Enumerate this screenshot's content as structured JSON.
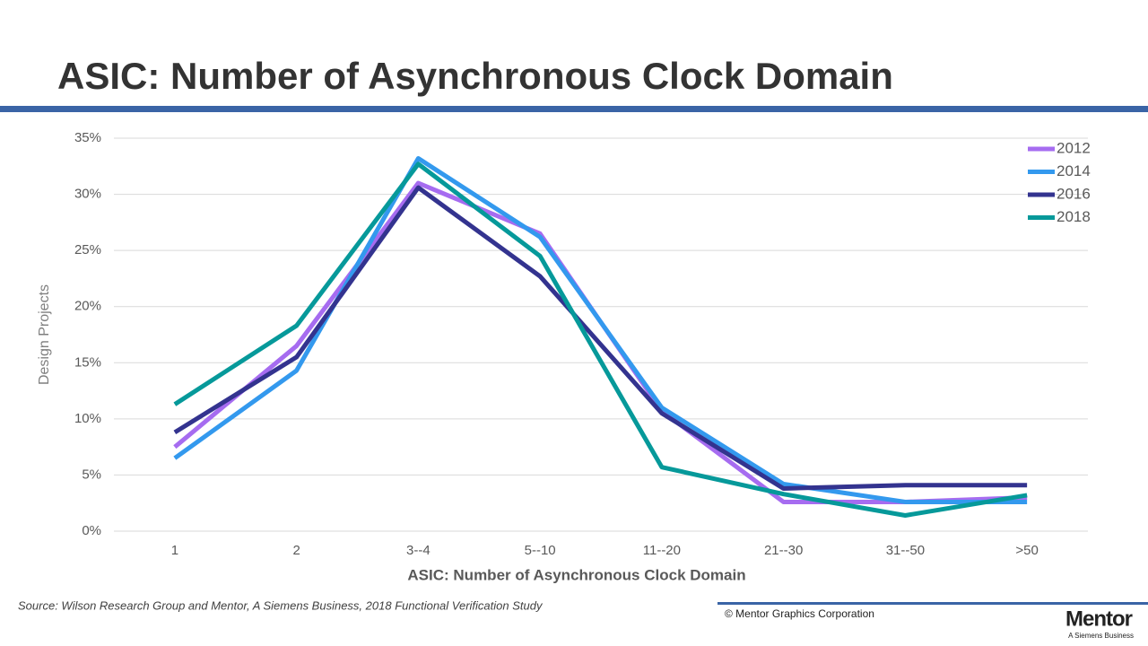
{
  "title": "ASIC: Number of Asynchronous Clock Domain",
  "chart_data": {
    "type": "line",
    "categories": [
      "1",
      "2",
      "3--4",
      "5--10",
      "11--20",
      "21--30",
      "31--50",
      ">50"
    ],
    "series": [
      {
        "name": "2012",
        "color": "#a66cf0",
        "values": [
          7.5,
          16.5,
          31.0,
          26.5,
          10.7,
          2.6,
          2.6,
          3.0
        ]
      },
      {
        "name": "2014",
        "color": "#3399ee",
        "values": [
          6.5,
          14.3,
          33.2,
          26.2,
          11.0,
          4.2,
          2.6,
          2.6
        ]
      },
      {
        "name": "2016",
        "color": "#33338f",
        "values": [
          8.8,
          15.5,
          30.6,
          22.7,
          10.5,
          3.8,
          4.1,
          4.1
        ]
      },
      {
        "name": "2018",
        "color": "#06999a",
        "values": [
          11.3,
          18.3,
          32.7,
          24.5,
          5.7,
          3.3,
          1.4,
          3.2
        ]
      }
    ],
    "ylim": [
      0,
      35
    ],
    "yticks": [
      {
        "value": 0,
        "label": "0%"
      },
      {
        "value": 5,
        "label": "5%"
      },
      {
        "value": 10,
        "label": "10%"
      },
      {
        "value": 15,
        "label": "15%"
      },
      {
        "value": 20,
        "label": "20%"
      },
      {
        "value": 25,
        "label": "25%"
      },
      {
        "value": 30,
        "label": "30%"
      },
      {
        "value": 35,
        "label": "35%"
      }
    ],
    "grid": true,
    "legend": "upper right",
    "xlabel": "ASIC: Number of Asynchronous Clock Domain",
    "ylabel": "Design Projects"
  },
  "source": "Source:  Wilson Research Group and Mentor, A Siemens Business, 2018 Functional Verification Study",
  "copyright": "© Mentor Graphics Corporation",
  "logo": {
    "name": "Mentor",
    "tagline": "A Siemens Business"
  }
}
